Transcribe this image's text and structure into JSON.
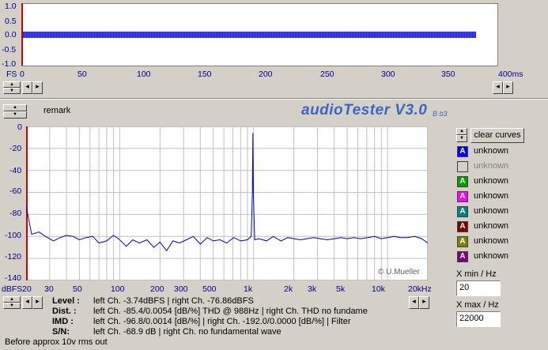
{
  "top_plot": {
    "y_ticks": [
      "1.0",
      "0.5",
      "0.0",
      "-0.5",
      "-1.0"
    ],
    "y_unit": "FS",
    "x_ticks": [
      "0",
      "50",
      "100",
      "150",
      "200",
      "250",
      "300",
      "350",
      "400ms"
    ]
  },
  "header": {
    "remark_label": "remark",
    "app_title": "audioTester V3.0",
    "version_badge": "B b3"
  },
  "spectrum": {
    "y_ticks": [
      "0",
      "-20",
      "-40",
      "-60",
      "-80",
      "-100",
      "-120",
      "-140"
    ],
    "y_unit": "dBFS",
    "x_ticks": [
      "20",
      "30",
      "50",
      "100",
      "200",
      "300",
      "500",
      "1k",
      "2k",
      "3k",
      "5k",
      "10k",
      "20kHz"
    ],
    "watermark": "© U.Mueller"
  },
  "channels": {
    "clear_label": "clear curves",
    "items": [
      {
        "letter": "A",
        "label": "unknown",
        "color": "#0000ff",
        "enabled": true
      },
      {
        "letter": "",
        "label": "unknown",
        "color": "#d4d0c8",
        "enabled": false
      },
      {
        "letter": "A",
        "label": "unknown",
        "color": "#00a000",
        "enabled": true
      },
      {
        "letter": "A",
        "label": "unknown",
        "color": "#ff00ff",
        "enabled": true
      },
      {
        "letter": "A",
        "label": "unknown",
        "color": "#008080",
        "enabled": true
      },
      {
        "letter": "A",
        "label": "unknown",
        "color": "#800000",
        "enabled": true
      },
      {
        "letter": "A",
        "label": "unknown",
        "color": "#808000",
        "enabled": true
      },
      {
        "letter": "A",
        "label": "unknown",
        "color": "#800080",
        "enabled": true
      }
    ]
  },
  "xrange": {
    "min_label": "X min / Hz",
    "min_value": "20",
    "max_label": "X max / Hz",
    "max_value": "22000"
  },
  "info": {
    "level_label": "Level :",
    "level_value": "left Ch. -3.74dBFS  | right Ch. -76.86dBFS",
    "dist_label": "Dist. :",
    "dist_value": "left Ch. -85.4/0.0054 [dB/%] THD @ 988Hz  | right Ch. THD no fundame",
    "imd_label": "IMD :",
    "imd_value": "left Ch. -96.8/0.0014 [dB/%]  | right Ch. -192.0/0.0000 [dB/%]  |  Filter",
    "sn_label": "S/N:",
    "sn_value": "left Ch. -68.9 dB  | right Ch.  no fundamental wave"
  },
  "status_text": "Before approx 10v rms out",
  "chart_data": {
    "type": "line",
    "x_scale": "log",
    "xlim": [
      20,
      20000
    ],
    "ylim": [
      -140,
      0
    ],
    "xlabel": "",
    "ylabel": "dBFS",
    "series": [
      {
        "color": "#0000cc",
        "x": [
          20,
          22,
          25,
          28,
          32,
          36,
          40,
          45,
          50,
          56,
          63,
          70,
          80,
          90,
          100,
          112,
          125,
          140,
          160,
          180,
          200,
          224,
          250,
          280,
          315,
          355,
          400,
          450,
          500,
          560,
          630,
          710,
          800,
          900,
          960,
          980,
          988,
          996,
          1020,
          1100,
          1250,
          1400,
          1600,
          1800,
          2000,
          2240,
          2500,
          2800,
          3150,
          3550,
          4000,
          4500,
          5000,
          5600,
          6300,
          7100,
          8000,
          9000,
          10000,
          11200,
          12500,
          14000,
          16000,
          18000,
          20000
        ],
        "y": [
          -72,
          -98,
          -96,
          -100,
          -104,
          -101,
          -99,
          -100,
          -103,
          -101,
          -100,
          -106,
          -104,
          -99,
          -103,
          -109,
          -103,
          -106,
          -103,
          -110,
          -105,
          -113,
          -104,
          -106,
          -103,
          -100,
          -107,
          -101,
          -104,
          -103,
          -106,
          -101,
          -104,
          -103,
          -100,
          -60,
          -6,
          -60,
          -103,
          -102,
          -104,
          -100,
          -104,
          -101,
          -102,
          -103,
          -102,
          -101,
          -102,
          -103,
          -102,
          -101,
          -102,
          -101,
          -102,
          -101,
          -100,
          -102,
          -101,
          -100,
          -101,
          -101,
          -100,
          -102,
          -106
        ]
      }
    ]
  }
}
